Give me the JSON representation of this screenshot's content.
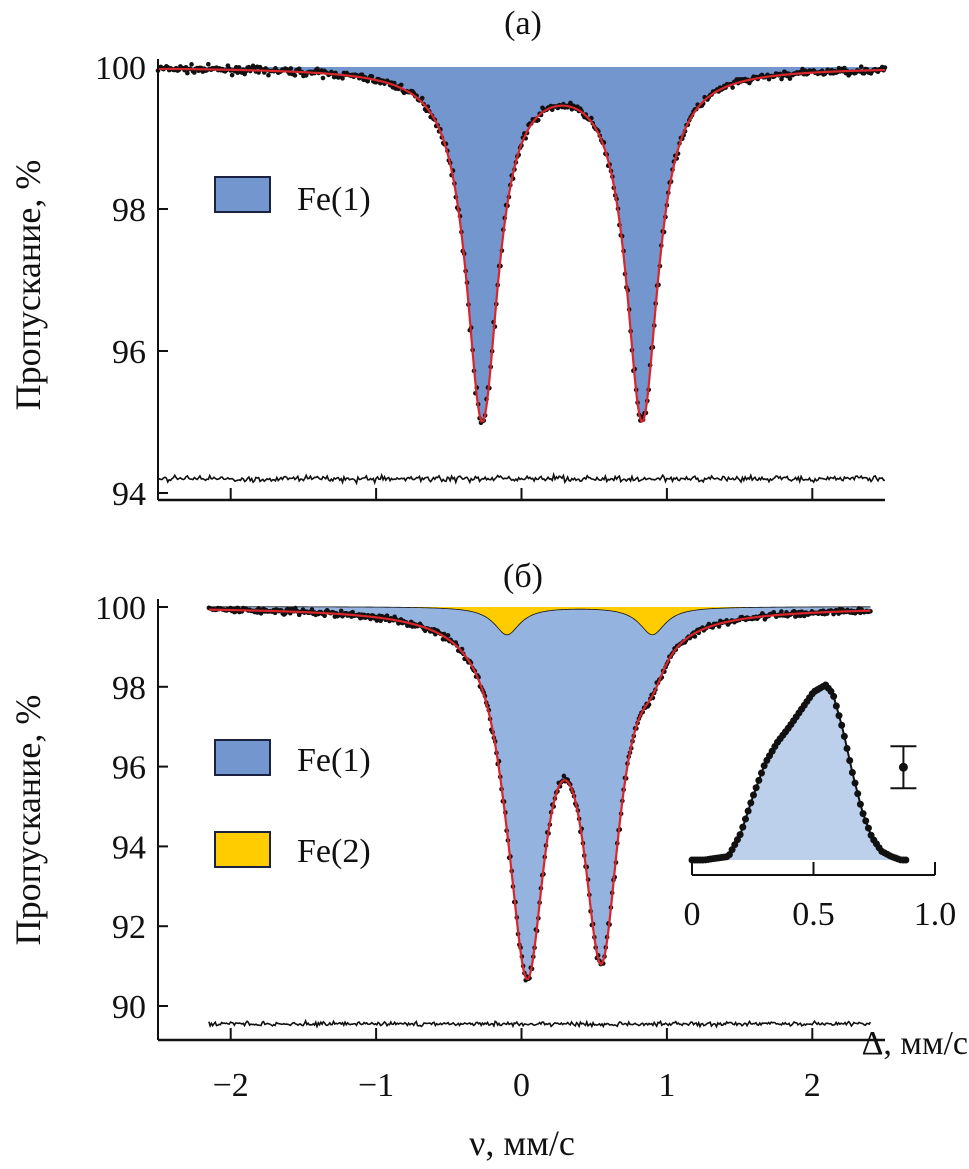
{
  "chart_data": [
    {
      "type": "line",
      "title": "(a)",
      "xlabel": "",
      "ylabel": "Пропускание, %",
      "xlim": [
        -2.5,
        2.5
      ],
      "ylim": [
        94,
        100
      ],
      "x_ticks": [
        -2,
        -1,
        0,
        1,
        2
      ],
      "y_ticks": [
        "94",
        "96",
        "98",
        "100"
      ],
      "grid": false,
      "legend": {
        "placement": "left",
        "entries": [
          {
            "label": "Fe(1)",
            "color": "#7396cf"
          }
        ]
      },
      "x_range": [
        -2.5,
        2.5
      ],
      "components": [
        {
          "name": "Fe(1)",
          "color": "#7396cf",
          "lines": [
            {
              "center": -0.27,
              "depth": 4.93,
              "hwhm": 0.133
            },
            {
              "center": 0.83,
              "depth": 4.93,
              "hwhm": 0.133
            }
          ]
        }
      ],
      "minima": [
        {
          "x": -0.27,
          "y": 95.0
        },
        {
          "x": 0.83,
          "y": 95.0
        }
      ],
      "midpoint": {
        "x": 0.28,
        "y": 99.45
      },
      "residual_offset": 94.2,
      "fit_color": "#d8262c",
      "points_color": "#111111"
    },
    {
      "type": "line",
      "title": "(б)",
      "xlabel": "ν, мм/с",
      "ylabel": "Пропускание, %",
      "xlim": [
        -2.5,
        2.5
      ],
      "ylim": [
        89.5,
        100
      ],
      "x_tick_values": [
        -2,
        -1,
        0,
        1,
        2
      ],
      "x_ticks": [
        "−2",
        "−1",
        "0",
        "1",
        "2"
      ],
      "y_ticks": [
        "90",
        "92",
        "94",
        "96",
        "98",
        "100"
      ],
      "grid": false,
      "legend": {
        "placement": "left",
        "entries": [
          {
            "label": "Fe(1)",
            "color": "#7396cf"
          },
          {
            "label": "Fe(2)",
            "color": "#ffcc00"
          }
        ]
      },
      "x_range": [
        -2.15,
        2.4
      ],
      "components": [
        {
          "name": "Fe(2)",
          "color": "#ffcc00",
          "lines": [
            {
              "center": -0.1,
              "depth": 0.7,
              "hwhm": 0.11
            },
            {
              "center": 0.9,
              "depth": 0.7,
              "hwhm": 0.11
            }
          ]
        },
        {
          "name": "Fe(1)",
          "color": "#94b3df",
          "lines": [
            {
              "center": 0.04,
              "depth": 8.4,
              "hwhm": 0.15
            },
            {
              "center": 0.55,
              "depth": 8.2,
              "hwhm": 0.15
            }
          ]
        }
      ],
      "minima": [
        {
          "x": 0.05,
          "y": 90.8
        },
        {
          "x": 0.55,
          "y": 91.0
        }
      ],
      "midpoint": {
        "x": 0.3,
        "y": 95.5
      },
      "residual_offset": 89.55,
      "fit_color": "#d8262c",
      "points_color": "#111111"
    },
    {
      "type": "area",
      "title": "",
      "xlabel": "Δ, мм/с",
      "ylabel": "",
      "xlim": [
        0,
        1.0
      ],
      "x_ticks": [
        "0",
        "0.5",
        "1.0"
      ],
      "x_tick_values": [
        0,
        0.5,
        1.0
      ],
      "fill_color": "#bcd0ec",
      "x": [
        0,
        0.05,
        0.1,
        0.15,
        0.2,
        0.25,
        0.3,
        0.35,
        0.4,
        0.45,
        0.5,
        0.55,
        0.58,
        0.62,
        0.66,
        0.7,
        0.74,
        0.78,
        0.82,
        0.86,
        0.88
      ],
      "y": [
        0.0,
        0.0,
        0.01,
        0.02,
        0.15,
        0.36,
        0.55,
        0.67,
        0.76,
        0.86,
        0.96,
        1.0,
        0.95,
        0.75,
        0.5,
        0.28,
        0.13,
        0.05,
        0.02,
        0.0,
        0.0
      ],
      "error_bar": {
        "x": 0.87,
        "y": 0.53,
        "err": 0.12
      }
    }
  ]
}
